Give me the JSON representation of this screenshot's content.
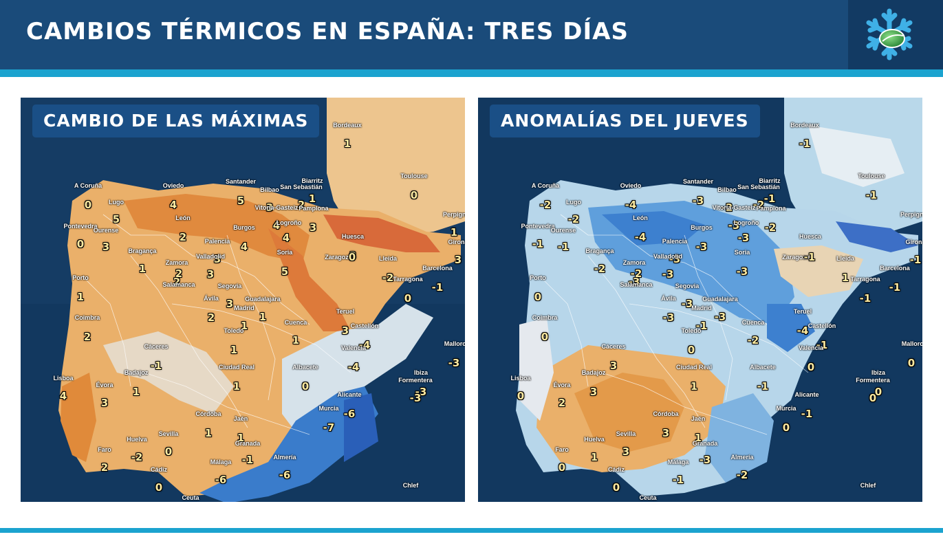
{
  "header": {
    "title": "CAMBIOS TÉRMICOS EN ESPAÑA: TRES DÍAS",
    "logo_icon": "snowflake-logo-icon"
  },
  "colors": {
    "header_bg": "#1a4b7a",
    "accent_stripe": "#1ba3cf",
    "sea": "#0e2f52",
    "warm": "#e9a24a",
    "hot": "#d8552f",
    "cold": "#3f86cf"
  },
  "panels": [
    {
      "title": "CAMBIO DE LAS MÁXIMAS",
      "cities": [
        {
          "name": "Bordeaux",
          "value": "1"
        },
        {
          "name": "Toulouse",
          "value": "0"
        },
        {
          "name": "Perpignan",
          "value": "1"
        },
        {
          "name": "A Coruña",
          "value": "0"
        },
        {
          "name": "Lugo",
          "value": "5"
        },
        {
          "name": "Oviedo",
          "value": "4"
        },
        {
          "name": "Santander",
          "value": "5"
        },
        {
          "name": "Bilbao",
          "value": "3"
        },
        {
          "name": "San Sebastián",
          "value": "2"
        },
        {
          "name": "Biarritz",
          "value": "1"
        },
        {
          "name": "Vitoria-Gasteiz",
          "value": "4"
        },
        {
          "name": "Pamplona",
          "value": "3"
        },
        {
          "name": "Logroño",
          "value": "4"
        },
        {
          "name": "León",
          "value": "2"
        },
        {
          "name": "Pontevedra",
          "value": "0"
        },
        {
          "name": "Ourense",
          "value": "3"
        },
        {
          "name": "Burgos",
          "value": "4"
        },
        {
          "name": "Palencia",
          "value": "3"
        },
        {
          "name": "Huesca",
          "value": "3"
        },
        {
          "name": "Girona",
          "value": "3"
        },
        {
          "name": "Bragança",
          "value": "1"
        },
        {
          "name": "Zamora",
          "value": "2"
        },
        {
          "name": "Valladolid",
          "value": "3"
        },
        {
          "name": "Soria",
          "value": "5"
        },
        {
          "name": "Zaragoza",
          "value": "0"
        },
        {
          "name": "Lleida",
          "value": "-2"
        },
        {
          "name": "Barcelona",
          "value": "-1"
        },
        {
          "name": "Porto",
          "value": "1"
        },
        {
          "name": "Salamanca",
          "value": "2"
        },
        {
          "name": "Segovia",
          "value": "3"
        },
        {
          "name": "Tarragona",
          "value": "0"
        },
        {
          "name": "Ávila",
          "value": "2"
        },
        {
          "name": "Guadalajara",
          "value": "1"
        },
        {
          "name": "Madrid",
          "value": "1"
        },
        {
          "name": "Teruel",
          "value": "3"
        },
        {
          "name": "Coimbra",
          "value": "2"
        },
        {
          "name": "Toledo",
          "value": "1"
        },
        {
          "name": "Cuenca",
          "value": "1"
        },
        {
          "name": "Castellón",
          "value": "-4"
        },
        {
          "name": "Cáceres",
          "value": "-1"
        },
        {
          "name": "Valencia",
          "value": "-4"
        },
        {
          "name": "Mallorca",
          "value": "-3"
        },
        {
          "name": "Ciudad Real",
          "value": "1"
        },
        {
          "name": "Albacete",
          "value": "0"
        },
        {
          "name": "Badajoz",
          "value": "1"
        },
        {
          "name": "Lisboa",
          "value": "4"
        },
        {
          "name": "Évora",
          "value": "3"
        },
        {
          "name": "Ibiza",
          "value": "-3"
        },
        {
          "name": "Formentera",
          "value": "-3"
        },
        {
          "name": "Alicante",
          "value": "-6"
        },
        {
          "name": "Córdoba",
          "value": "1"
        },
        {
          "name": "Jaén",
          "value": "1"
        },
        {
          "name": "Murcia",
          "value": "-7"
        },
        {
          "name": "Huelva",
          "value": "-2"
        },
        {
          "name": "Sevilla",
          "value": "0"
        },
        {
          "name": "Granada",
          "value": "-1"
        },
        {
          "name": "Faro",
          "value": "2"
        },
        {
          "name": "Málaga",
          "value": "-6"
        },
        {
          "name": "Almería",
          "value": "-6"
        },
        {
          "name": "Cádiz",
          "value": "0"
        },
        {
          "name": "Ceuta",
          "value": ""
        },
        {
          "name": "Chlef",
          "value": ""
        }
      ]
    },
    {
      "title": "ANOMALÍAS DEL JUEVES",
      "cities": [
        {
          "name": "Bordeaux",
          "value": "-1"
        },
        {
          "name": "Toulouse",
          "value": "-1"
        },
        {
          "name": "Perpignan",
          "value": ""
        },
        {
          "name": "A Coruña",
          "value": "-2"
        },
        {
          "name": "Lugo",
          "value": "-2"
        },
        {
          "name": "Oviedo",
          "value": "-4"
        },
        {
          "name": "Santander",
          "value": "-3"
        },
        {
          "name": "Bilbao",
          "value": "-2"
        },
        {
          "name": "San Sebastián",
          "value": "-2"
        },
        {
          "name": "Biarritz",
          "value": "-1"
        },
        {
          "name": "Vitoria-Gasteiz",
          "value": "-3"
        },
        {
          "name": "Pamplona",
          "value": "-2"
        },
        {
          "name": "Logroño",
          "value": "-3"
        },
        {
          "name": "León",
          "value": "-4"
        },
        {
          "name": "Pontevedra",
          "value": "-1"
        },
        {
          "name": "Ourense",
          "value": "-1"
        },
        {
          "name": "Burgos",
          "value": "-3"
        },
        {
          "name": "Palencia",
          "value": "-3"
        },
        {
          "name": "Huesca",
          "value": ""
        },
        {
          "name": "Girona",
          "value": "-1"
        },
        {
          "name": "Bragança",
          "value": "-2"
        },
        {
          "name": "Zamora",
          "value": "-3"
        },
        {
          "name": "Valladolid",
          "value": "-3"
        },
        {
          "name": "Soria",
          "value": "-3"
        },
        {
          "name": "Zaragoza",
          "value": "-1"
        },
        {
          "name": "Lleida",
          "value": "1"
        },
        {
          "name": "Barcelona",
          "value": "-1"
        },
        {
          "name": "Porto",
          "value": "0"
        },
        {
          "name": "Salamanca",
          "value": "-2"
        },
        {
          "name": "Segovia",
          "value": "-3"
        },
        {
          "name": "Tarragona",
          "value": "-1"
        },
        {
          "name": "Ávila",
          "value": "-3"
        },
        {
          "name": "Guadalajara",
          "value": "-3"
        },
        {
          "name": "Madrid",
          "value": "-1"
        },
        {
          "name": "Teruel",
          "value": "-4"
        },
        {
          "name": "Coimbra",
          "value": "0"
        },
        {
          "name": "Toledo",
          "value": "0"
        },
        {
          "name": "Cuenca",
          "value": "-2"
        },
        {
          "name": "Castellón",
          "value": "-1"
        },
        {
          "name": "Cáceres",
          "value": "3"
        },
        {
          "name": "Valencia",
          "value": "0"
        },
        {
          "name": "Mallorca",
          "value": "0"
        },
        {
          "name": "Ciudad Real",
          "value": "1"
        },
        {
          "name": "Albacete",
          "value": "-1"
        },
        {
          "name": "Badajoz",
          "value": "3"
        },
        {
          "name": "Lisboa",
          "value": "0"
        },
        {
          "name": "Évora",
          "value": "2"
        },
        {
          "name": "Ibiza",
          "value": "0"
        },
        {
          "name": "Formentera",
          "value": "0"
        },
        {
          "name": "Alicante",
          "value": "-1"
        },
        {
          "name": "Córdoba",
          "value": "3"
        },
        {
          "name": "Jaén",
          "value": "1"
        },
        {
          "name": "Murcia",
          "value": "0"
        },
        {
          "name": "Huelva",
          "value": "1"
        },
        {
          "name": "Sevilla",
          "value": "3"
        },
        {
          "name": "Granada",
          "value": "-3"
        },
        {
          "name": "Faro",
          "value": "0"
        },
        {
          "name": "Málaga",
          "value": "-1"
        },
        {
          "name": "Almería",
          "value": "-2"
        },
        {
          "name": "Cádiz",
          "value": "0"
        },
        {
          "name": "Ceuta",
          "value": ""
        },
        {
          "name": "Chlef",
          "value": ""
        }
      ]
    }
  ]
}
